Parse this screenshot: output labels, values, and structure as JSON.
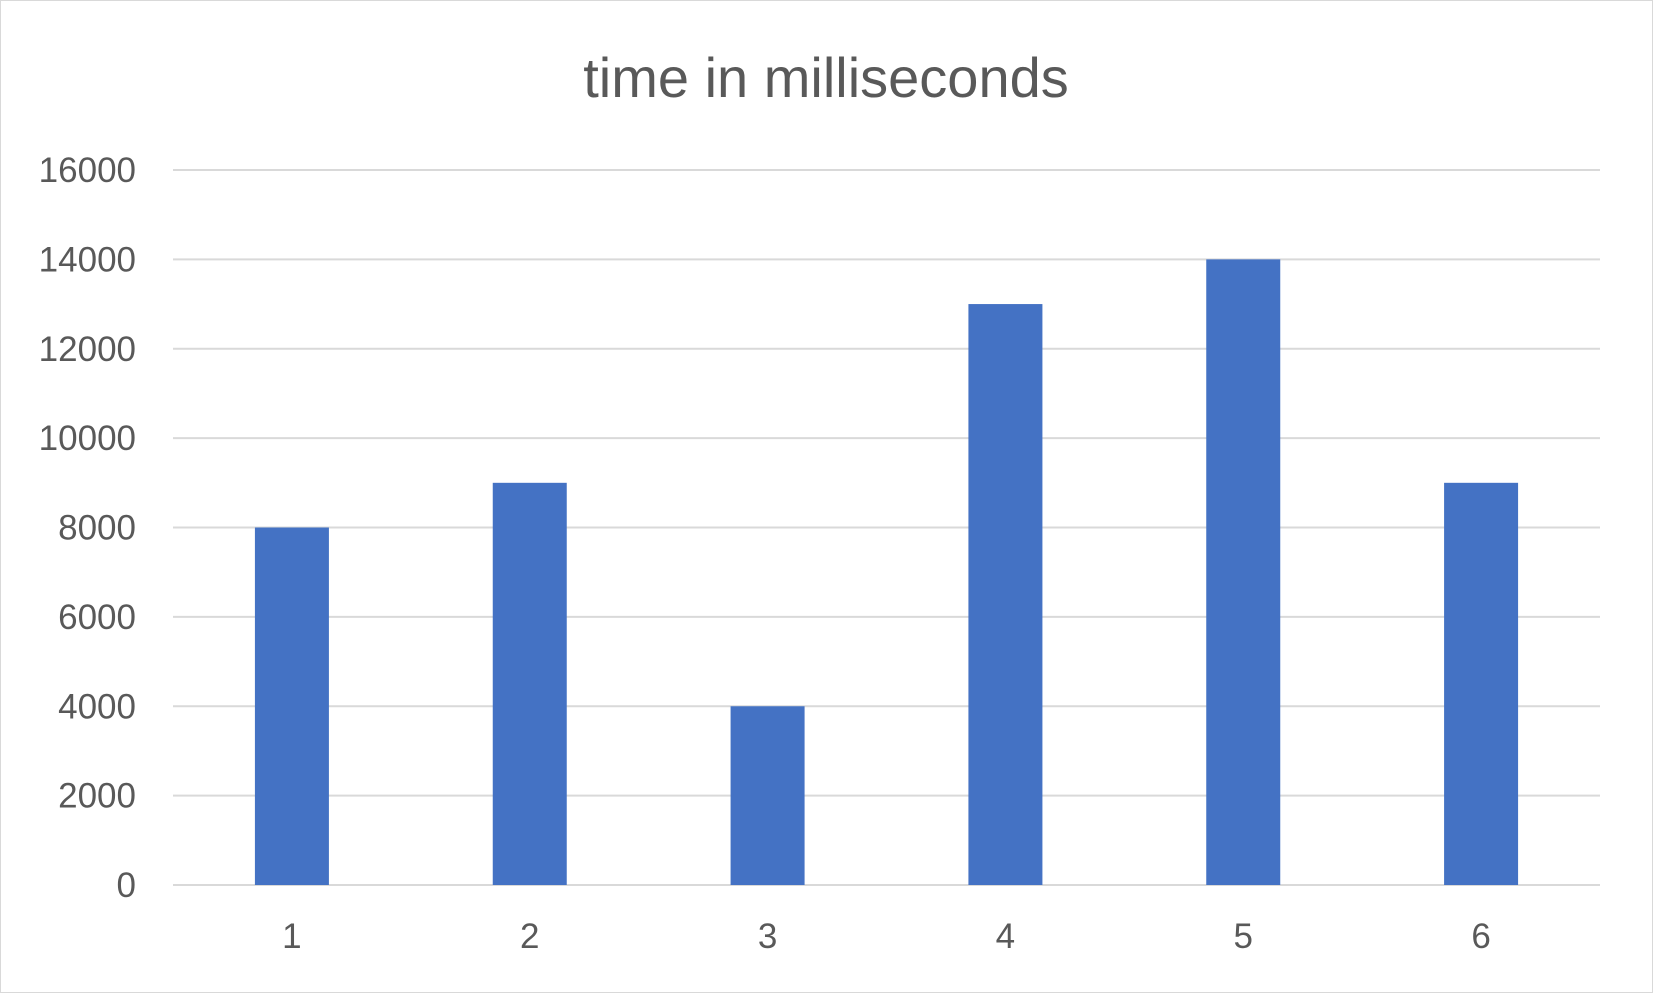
{
  "chart_data": {
    "type": "bar",
    "title": "time in milliseconds",
    "categories": [
      "1",
      "2",
      "3",
      "4",
      "5",
      "6"
    ],
    "values": [
      8000,
      9000,
      4000,
      13000,
      14000,
      9000
    ],
    "y_ticks": [
      "0",
      "2000",
      "4000",
      "6000",
      "8000",
      "10000",
      "12000",
      "14000",
      "16000"
    ],
    "ylim": [
      0,
      16000
    ],
    "xlabel": "",
    "ylabel": "",
    "grid": true,
    "legend": "none",
    "bar_color": "#4472C4"
  }
}
